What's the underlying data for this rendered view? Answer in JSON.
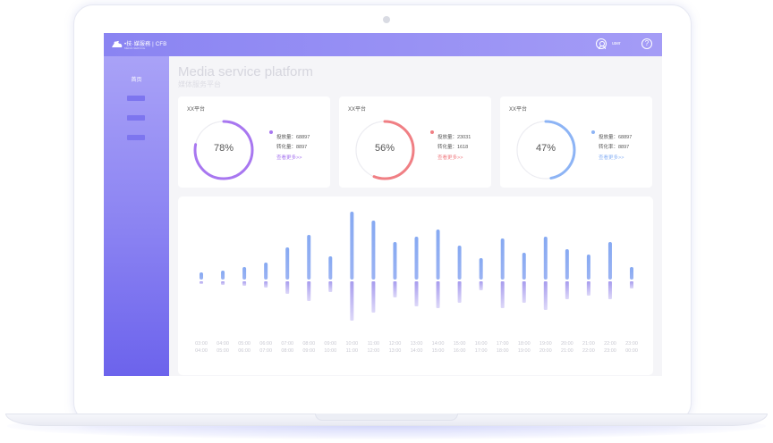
{
  "app": {
    "brand": "•技·媒服務",
    "brand_tag": "CFB",
    "brand_sub": "MEDIA SERVICE"
  },
  "header": {
    "user_name": "user",
    "help_symbol": "?"
  },
  "sidebar": {
    "items": [
      {
        "label": "首页"
      },
      {
        "label": ""
      },
      {
        "label": ""
      },
      {
        "label": ""
      }
    ]
  },
  "page": {
    "title": "Media service platform",
    "subtitle": "媒体服务平台"
  },
  "cards": [
    {
      "title": "XX平台",
      "percent": "78%",
      "fraction": 0.78,
      "color": "#a877f0",
      "stat1": "投放量：68897",
      "stat2": "转化量：8897",
      "more": "查看更多>>"
    },
    {
      "title": "XX平台",
      "percent": "56%",
      "fraction": 0.56,
      "color": "#f07f84",
      "stat1": "投放量：23031",
      "stat2": "转化量：1618",
      "more": "查看更多>>"
    },
    {
      "title": "XX平台",
      "percent": "47%",
      "fraction": 0.47,
      "color": "#8db4f5",
      "stat1": "投放量：68897",
      "stat2": "转化率：8897",
      "more": "查看更多>>"
    }
  ],
  "chart_data": {
    "type": "bar",
    "categories": [
      "03:00\n04:00",
      "04:00\n05:00",
      "05:00\n06:00",
      "06:00\n07:00",
      "07:00\n08:00",
      "08:00\n09:00",
      "09:00\n10:00",
      "10:00\n11:00",
      "11:00\n12:00",
      "12:00\n13:00",
      "13:00\n14:00",
      "14:00\n15:00",
      "15:00\n16:00",
      "16:00\n17:00",
      "17:00\n18:00",
      "18:00\n19:00",
      "19:00\n20:00",
      "20:00\n21:00",
      "21:00\n22:00",
      "22:00\n23:00",
      "23:00\n00:00"
    ],
    "series": [
      {
        "values": [
          8,
          10,
          14,
          19,
          36,
          50,
          26,
          76,
          66,
          42,
          48,
          56,
          38,
          24,
          46,
          30,
          48,
          34,
          28,
          42,
          14
        ]
      },
      {
        "values": [
          -3,
          -4,
          -5,
          -7,
          -14,
          -22,
          -12,
          -44,
          -35,
          -18,
          -28,
          -30,
          -24,
          -10,
          -30,
          -24,
          -32,
          -20,
          -16,
          -20,
          -8
        ]
      }
    ],
    "colors": {
      "up": "#86a9f2",
      "down": "#b3a8ef"
    },
    "ylim": [
      -50,
      80
    ],
    "grid": false
  }
}
